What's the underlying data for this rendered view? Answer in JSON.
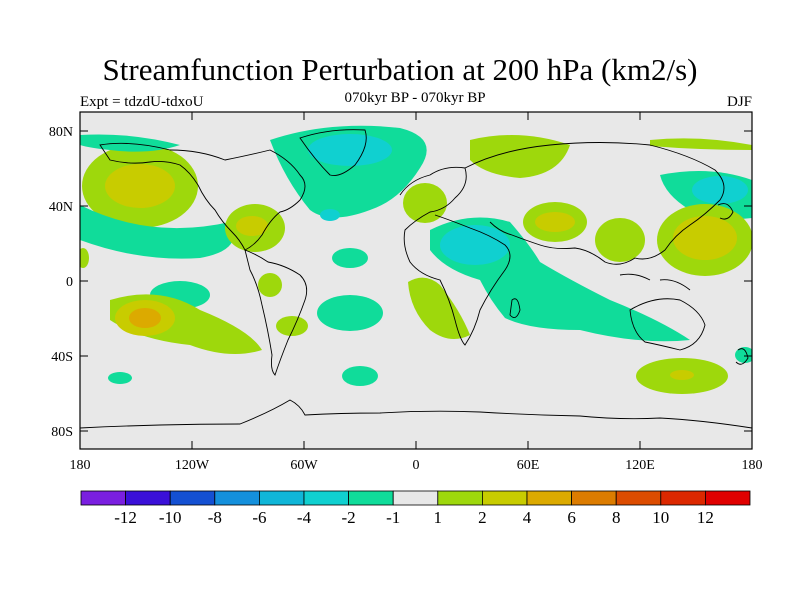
{
  "title": "Streamfunction Perturbation at 200 hPa (km2/s)",
  "subtitle": "070kyr BP - 070kyr BP",
  "left_label": "Expt = tdzdU-tdxoU",
  "right_label": "DJF",
  "y_ticks": [
    "80N",
    "40N",
    "0",
    "40S",
    "80S"
  ],
  "x_ticks": [
    "180",
    "120W",
    "60W",
    "0",
    "60E",
    "120E",
    "180"
  ],
  "colorbar": {
    "labels": [
      "-12",
      "-10",
      "-8",
      "-6",
      "-4",
      "-2",
      "-1",
      "1",
      "2",
      "4",
      "6",
      "8",
      "10",
      "12"
    ],
    "colors": [
      "#7a1fe0",
      "#3a10d8",
      "#1450d2",
      "#1490dc",
      "#10b6d8",
      "#10d0d0",
      "#10dc9a",
      "#e8e8e8",
      "#9ed80c",
      "#c8cc00",
      "#dcaa00",
      "#dc7c00",
      "#dc4c00",
      "#dc2800",
      "#e00000"
    ]
  },
  "colors": {
    "ocean_bg": "#e8e8e8",
    "frame": "#000000"
  }
}
